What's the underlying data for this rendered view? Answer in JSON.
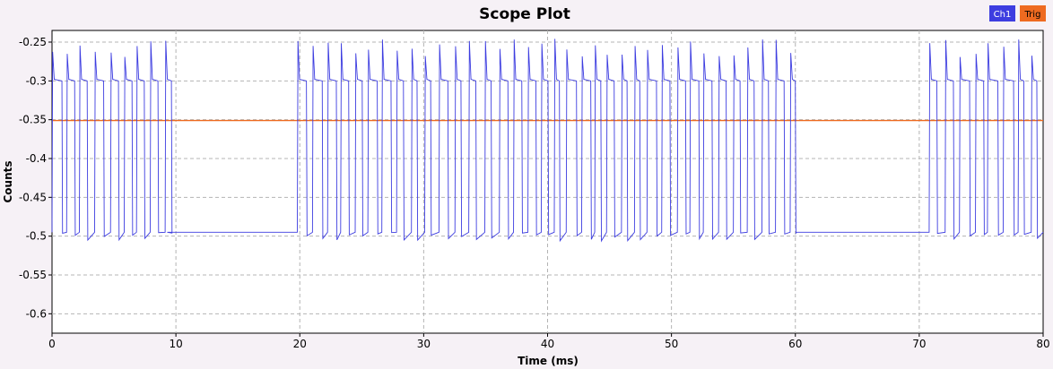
{
  "chart_data": {
    "type": "line",
    "title": "Scope Plot",
    "xlabel": "Time (ms)",
    "ylabel": "Counts",
    "xlim": [
      0,
      80
    ],
    "ylim": [
      -0.625,
      -0.235
    ],
    "x_ticks": [
      0,
      10,
      20,
      30,
      40,
      50,
      60,
      70,
      80
    ],
    "x_tick_labels": [
      "0",
      "10",
      "20",
      "30",
      "40",
      "50",
      "60",
      "70",
      "80"
    ],
    "y_ticks": [
      -0.25,
      -0.3,
      -0.35,
      -0.4,
      -0.45,
      -0.5,
      -0.55,
      -0.6
    ],
    "y_tick_labels": [
      "-0.25",
      "-0.3",
      "-0.35",
      "-0.4",
      "-0.45",
      "-0.5",
      "-0.55",
      "-0.6"
    ],
    "grid": true,
    "legend_position": "top-right",
    "series": [
      {
        "name": "Ch1",
        "color": "#3d3de0",
        "signal": {
          "high": -0.3,
          "low": -0.495,
          "peak_low": -0.27,
          "peak_high": -0.245,
          "bursts": [
            [
              0,
              9.3
            ],
            [
              19.8,
              60.1
            ],
            [
              70.8,
              80
            ]
          ]
        }
      },
      {
        "name": "Trig",
        "color": "#ee6a20",
        "x": [
          0,
          80
        ],
        "y": [
          -0.351,
          -0.351
        ]
      }
    ]
  }
}
